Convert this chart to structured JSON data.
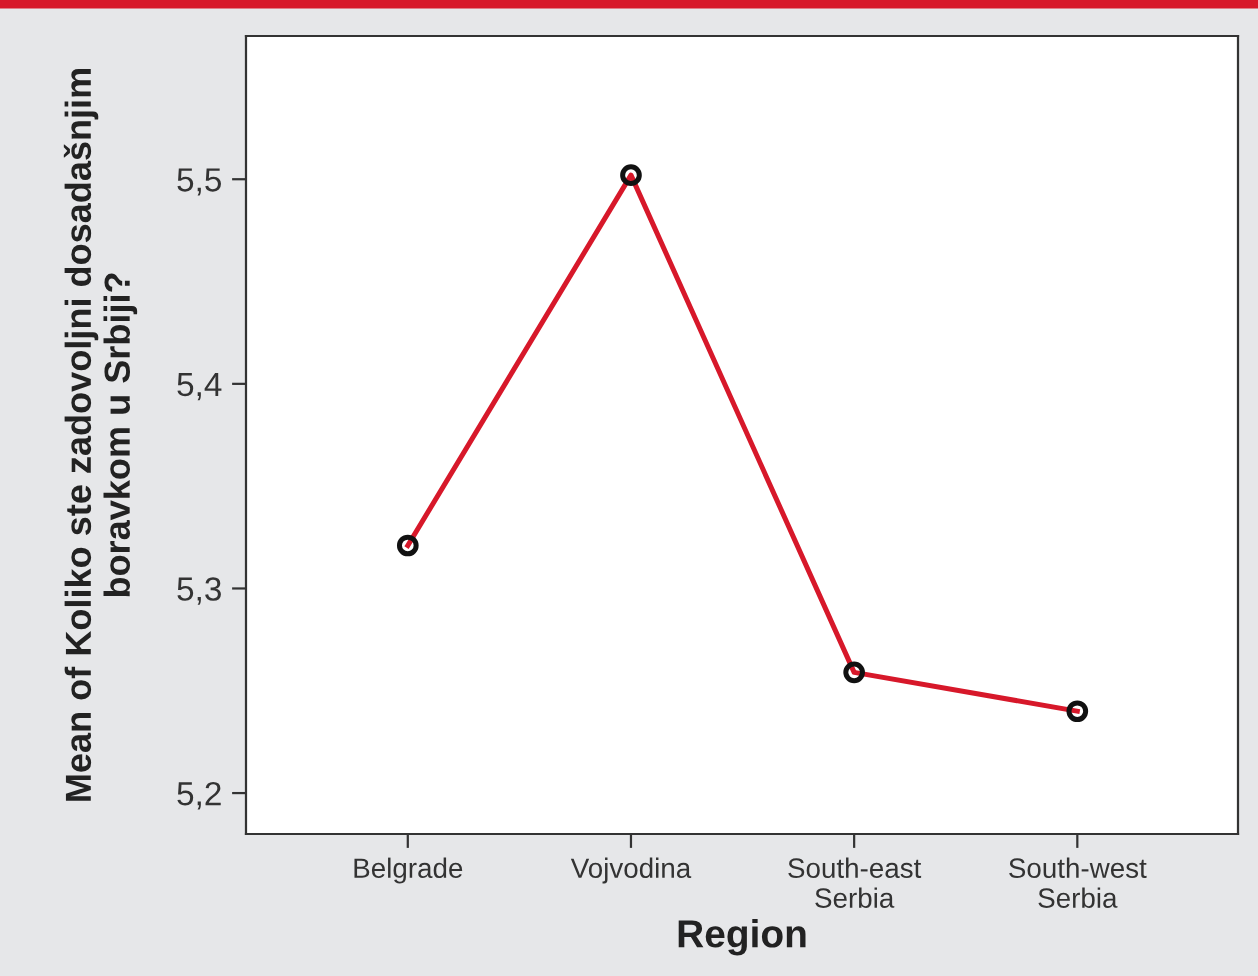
{
  "chart_data": {
    "type": "line",
    "xlabel": "Region",
    "ylabel": "Mean of Koliko ste zadovoljni dosadašnjim\nboravkom u Srbiji?",
    "categories": [
      "Belgrade",
      "Vojvodina",
      "South-east\nSerbia",
      "South-west\nSerbia"
    ],
    "series": [
      {
        "color": "#d7182a",
        "values": [
          5.321,
          5.502,
          5.259,
          5.24
        ]
      }
    ],
    "ylim": [
      5.18,
      5.57
    ],
    "yticks": [
      {
        "value": 5.2,
        "label": "5,2"
      },
      {
        "value": 5.3,
        "label": "5,3"
      },
      {
        "value": 5.4,
        "label": "5,4"
      },
      {
        "value": 5.5,
        "label": "5,5"
      }
    ],
    "marker": "circle",
    "line_style": "solid",
    "grid": false,
    "legend": false
  }
}
